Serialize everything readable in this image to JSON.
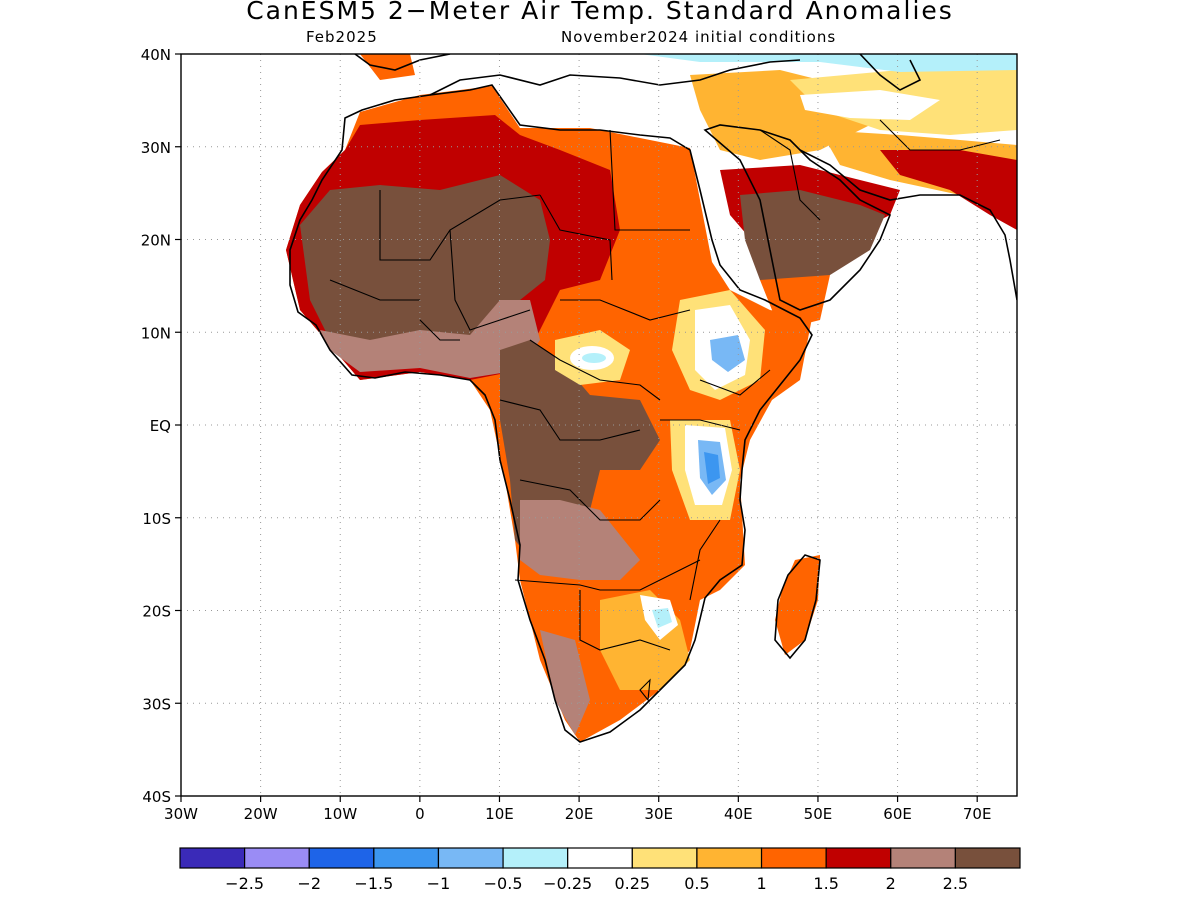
{
  "title": "CanESM5 2−Meter Air Temp. Standard Anomalies",
  "subtitle_left": "Feb2025",
  "subtitle_right": "November2024 initial conditions",
  "map": {
    "lon_range": [
      -30,
      75
    ],
    "lat_range": [
      -40,
      40
    ],
    "lon_ticks": [
      {
        "value": -30,
        "label": "30W"
      },
      {
        "value": -20,
        "label": "20W"
      },
      {
        "value": -10,
        "label": "10W"
      },
      {
        "value": 0,
        "label": "0"
      },
      {
        "value": 10,
        "label": "10E"
      },
      {
        "value": 20,
        "label": "20E"
      },
      {
        "value": 30,
        "label": "30E"
      },
      {
        "value": 40,
        "label": "40E"
      },
      {
        "value": 50,
        "label": "50E"
      },
      {
        "value": 60,
        "label": "60E"
      },
      {
        "value": 70,
        "label": "70E"
      }
    ],
    "lat_ticks": [
      {
        "value": 40,
        "label": "40N"
      },
      {
        "value": 30,
        "label": "30N"
      },
      {
        "value": 20,
        "label": "20N"
      },
      {
        "value": 10,
        "label": "10N"
      },
      {
        "value": 0,
        "label": "EQ"
      },
      {
        "value": -10,
        "label": "10S"
      },
      {
        "value": -20,
        "label": "20S"
      },
      {
        "value": -30,
        "label": "30S"
      },
      {
        "value": -40,
        "label": "40S"
      }
    ],
    "grid": "dotted"
  },
  "colorbar": {
    "colors": [
      "#3a2ab8",
      "#9a8cf5",
      "#1e64e8",
      "#3c96f0",
      "#78b8f5",
      "#b4f0fa",
      "#ffffff",
      "#ffe178",
      "#ffb432",
      "#ff6400",
      "#c00000",
      "#b48278",
      "#78503c"
    ],
    "labels": [
      "−2.5",
      "−2",
      "−1.5",
      "−1",
      "−0.5",
      "−0.25",
      "0.25",
      "0.5",
      "1",
      "1.5",
      "2",
      "2.5"
    ]
  }
}
